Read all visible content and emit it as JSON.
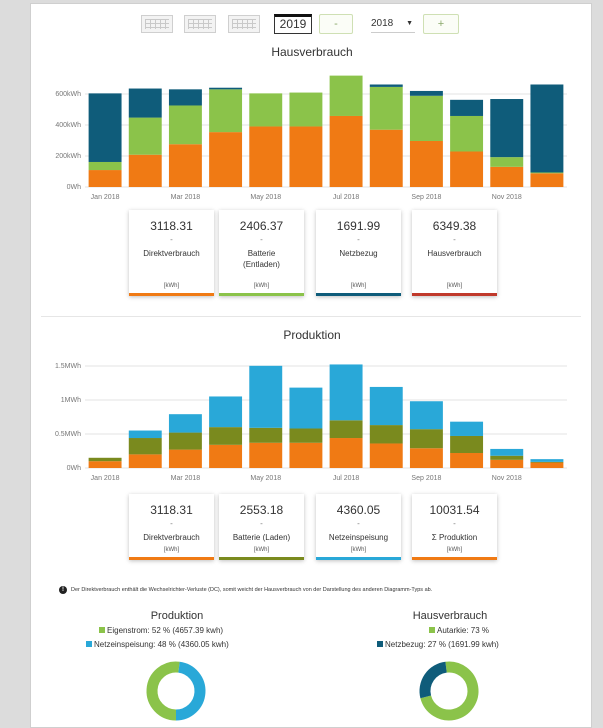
{
  "toolbar": {
    "year_value": "2019",
    "prev_label": "-",
    "next_label": "+",
    "year_select": "2018",
    "icons": [
      "month-view-icon",
      "quarter-view-icon",
      "year-view-icon"
    ]
  },
  "colors": {
    "orange": "#f07a14",
    "green": "#8bc34a",
    "olive": "#7a8a1e",
    "teal": "#0f5c7a",
    "blue": "#29a8d8",
    "red": "#c0392b"
  },
  "chart_data": [
    {
      "type": "bar",
      "title": "Hausverbrauch",
      "categories": [
        "Jan 2018",
        "Feb 2018",
        "Mar 2018",
        "Apr 2018",
        "May 2018",
        "Jun 2018",
        "Jul 2018",
        "Aug 2018",
        "Sep 2018",
        "Oct 2018",
        "Nov 2018",
        "Dec 2018"
      ],
      "x_tick_labels": [
        "Jan 2018",
        "Mar 2018",
        "May 2018",
        "Jul 2018",
        "Sep 2018",
        "Nov 2018"
      ],
      "y_tick_labels": [
        "0Wh",
        "200kWh",
        "400kWh",
        "600kWh"
      ],
      "ylim": [
        0,
        700
      ],
      "stacked": true,
      "grid": true,
      "series": [
        {
          "key": "direkt",
          "color": "#f07a14",
          "values": [
            105,
            200,
            265,
            340,
            375,
            375,
            440,
            355,
            285,
            220,
            125,
            85
          ]
        },
        {
          "key": "batterie",
          "color": "#8bc34a",
          "values": [
            50,
            230,
            240,
            265,
            205,
            210,
            250,
            265,
            280,
            220,
            60,
            5
          ]
        },
        {
          "key": "netz",
          "color": "#0f5c7a",
          "values": [
            425,
            180,
            100,
            10,
            0,
            0,
            0,
            15,
            30,
            100,
            360,
            545
          ]
        }
      ]
    },
    {
      "type": "bar",
      "title": "Produktion",
      "categories": [
        "Jan 2018",
        "Feb 2018",
        "Mar 2018",
        "Apr 2018",
        "May 2018",
        "Jun 2018",
        "Jul 2018",
        "Aug 2018",
        "Sep 2018",
        "Oct 2018",
        "Nov 2018",
        "Dec 2018"
      ],
      "x_tick_labels": [
        "Jan 2018",
        "Mar 2018",
        "May 2018",
        "Jul 2018",
        "Sep 2018",
        "Nov 2018"
      ],
      "y_tick_labels": [
        "0Wh",
        "0.5MWh",
        "1MWh",
        "1.5MWh"
      ],
      "ylim": [
        0,
        1.6
      ],
      "stacked": true,
      "grid": true,
      "series": [
        {
          "key": "direkt",
          "color": "#f07a14",
          "values": [
            0.1,
            0.2,
            0.27,
            0.34,
            0.37,
            0.37,
            0.44,
            0.36,
            0.29,
            0.22,
            0.12,
            0.08
          ]
        },
        {
          "key": "batterie",
          "color": "#7a8a1e",
          "values": [
            0.05,
            0.24,
            0.25,
            0.26,
            0.22,
            0.21,
            0.26,
            0.27,
            0.28,
            0.25,
            0.06,
            0.01
          ]
        },
        {
          "key": "netzeinspeisung",
          "color": "#29a8d8",
          "values": [
            0.0,
            0.11,
            0.27,
            0.45,
            0.91,
            0.6,
            0.82,
            0.56,
            0.41,
            0.21,
            0.1,
            0.04
          ]
        }
      ]
    },
    {
      "type": "pie",
      "title": "Produktion",
      "legend": [
        {
          "label": "Eigenstrom: 52 % (4657.39 kwh)",
          "color": "#8bc34a",
          "value": 52
        },
        {
          "label": "Netzeinspeisung: 48 % (4360.05 kwh)",
          "color": "#29a8d8",
          "value": 48
        }
      ]
    },
    {
      "type": "pie",
      "title": "Hausverbrauch",
      "legend": [
        {
          "label": "Autarkie: 73 %",
          "color": "#8bc34a",
          "value": 73
        },
        {
          "label": "Netzbezug: 27 % (1691.99 kwh)",
          "color": "#0f5c7a",
          "value": 27
        }
      ]
    }
  ],
  "cards_top": [
    {
      "value": "3118.31",
      "dash": "-",
      "label": "Direktverbrauch",
      "unit": "[kWh]",
      "color": "#f07a14"
    },
    {
      "value": "2406.37",
      "dash": "-",
      "label": "Batterie (Entladen)",
      "unit": "[kWh]",
      "color": "#8bc34a"
    },
    {
      "value": "1691.99",
      "dash": "-",
      "label": "Netzbezug",
      "unit": "[kWh]",
      "color": "#0f5c7a"
    },
    {
      "value": "6349.38",
      "dash": "-",
      "label": "Hausverbrauch",
      "unit": "[kWh]",
      "color": "#c0392b"
    }
  ],
  "cards_bottom": [
    {
      "value": "3118.31",
      "dash": "-",
      "label": "Direktverbrauch",
      "unit": "[kWh]",
      "color": "#f07a14"
    },
    {
      "value": "2553.18",
      "dash": "-",
      "label": "Batterie (Laden)",
      "unit": "[kWh]",
      "color": "#7a8a1e"
    },
    {
      "value": "4360.05",
      "dash": "-",
      "label": "Netzeinspeisung",
      "unit": "[kWh]",
      "color": "#29a8d8"
    },
    {
      "value": "10031.54",
      "dash": "-",
      "label": "Σ Produktion",
      "unit": "[kWh]",
      "color": "#f07a14"
    }
  ],
  "note": {
    "icon": "!",
    "text": "Der Direktverbrauch enthält die Wechselrichter-Verluste (DC), somit weicht der Hausverbrauch von der Darstellung des anderen Diagramm-Typs ab."
  }
}
